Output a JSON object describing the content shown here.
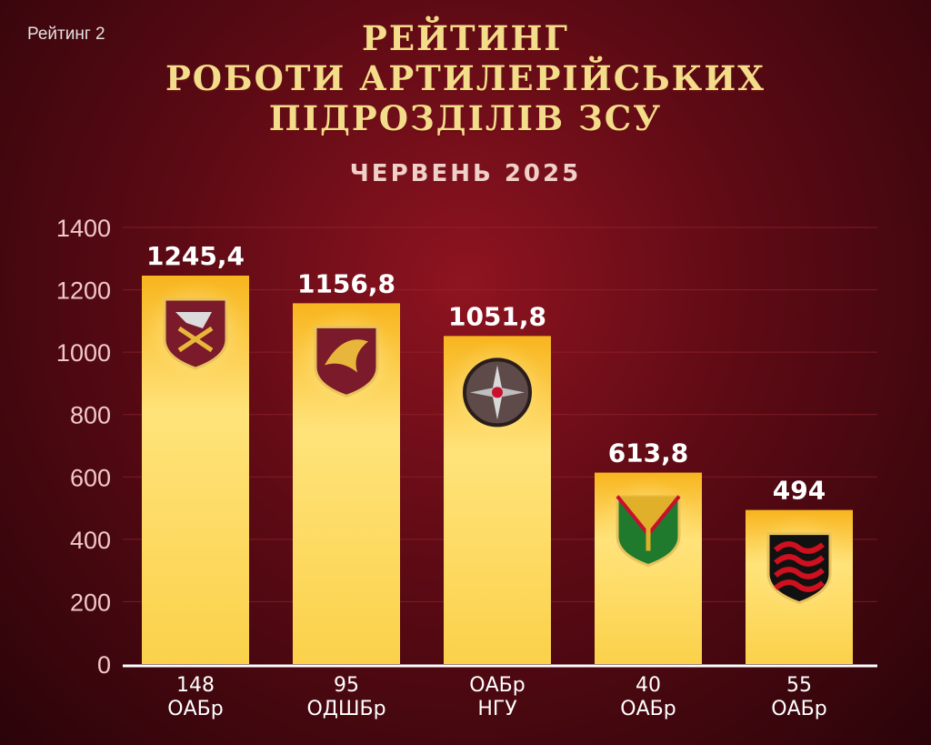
{
  "corner_label": "Рейтинг 2",
  "title_lines": [
    "Рейтинг",
    "роботи артилерійських",
    "підрозділів ЗСУ"
  ],
  "subtitle": "ЧЕРВЕНЬ 2025",
  "colors": {
    "bar_top": "#f8b51e",
    "bar_mid": "#ffe37a",
    "bar_bottom": "#fbd14a",
    "grid": "#9a2a33"
  },
  "chart_data": {
    "type": "bar",
    "title": "Рейтинг роботи артилерійських підрозділів ЗСУ",
    "subtitle": "ЧЕРВЕНЬ 2025",
    "ylim": [
      0,
      1400
    ],
    "yticks": [
      0,
      200,
      400,
      600,
      800,
      1000,
      1200,
      1400
    ],
    "grid": true,
    "categories": [
      [
        "148",
        "ОАБр"
      ],
      [
        "95",
        "ОДШБр"
      ],
      [
        "ОАБр",
        "НГУ"
      ],
      [
        "40",
        "ОАБр"
      ],
      [
        "55",
        "ОАБр"
      ]
    ],
    "values": [
      1245.4,
      1156.8,
      1051.8,
      613.8,
      494
    ],
    "value_labels": [
      "1245,4",
      "1156,8",
      "1051,8",
      "613,8",
      "494"
    ],
    "emblems": [
      "148-oabr-emblem-icon",
      "95-odshbr-emblem-icon",
      "oabr-ngu-emblem-icon",
      "40-oabr-emblem-icon",
      "55-oabr-emblem-icon"
    ]
  }
}
